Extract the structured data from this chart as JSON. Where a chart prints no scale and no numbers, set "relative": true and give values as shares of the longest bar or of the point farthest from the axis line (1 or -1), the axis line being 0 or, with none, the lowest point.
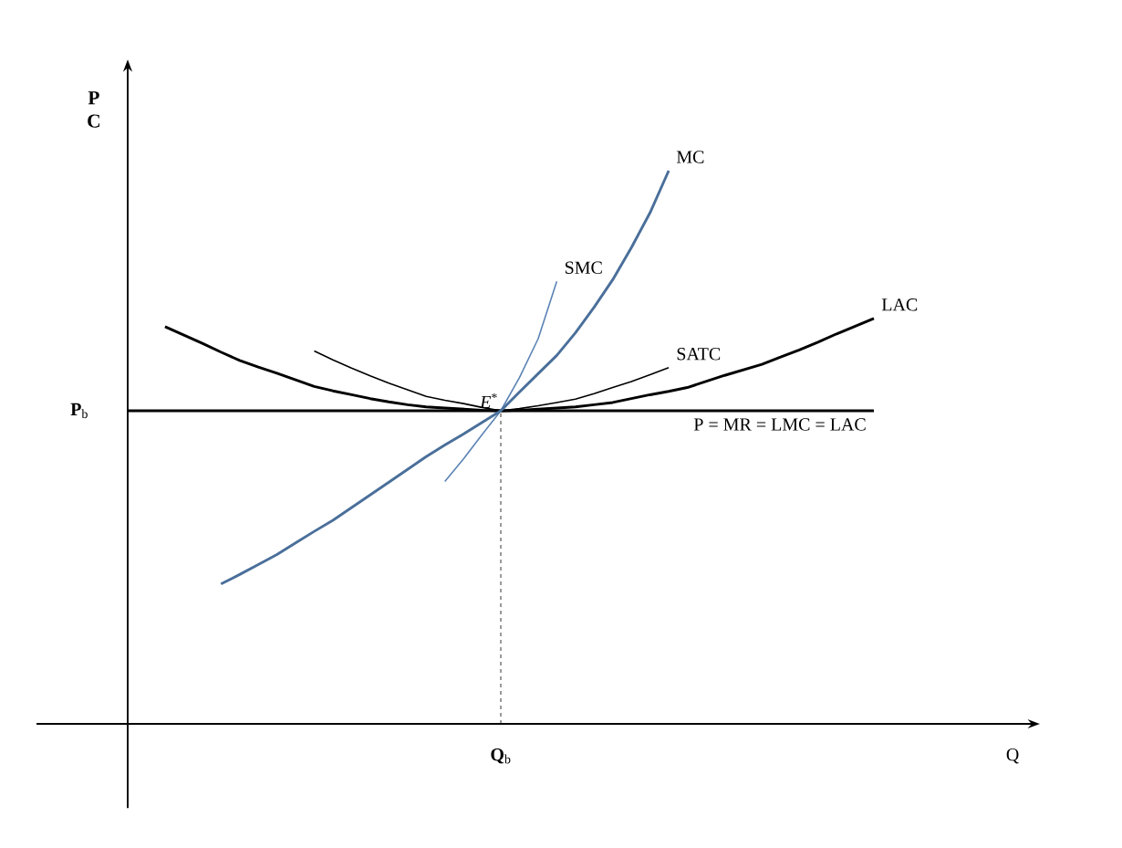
{
  "chart_data": {
    "type": "line",
    "relative": true,
    "ylabel": "P C",
    "marker": "none",
    "line_style": "solid",
    "categories": [
      null,
      null,
      null,
      null,
      null,
      null,
      null,
      null,
      null,
      null,
      null,
      null,
      null,
      null,
      null,
      null,
      null,
      null,
      null,
      null,
      null,
      null,
      null,
      null,
      null,
      null,
      null,
      null,
      null,
      null,
      null,
      null,
      null,
      null,
      null,
      null,
      null,
      null,
      null,
      null,
      null
    ],
    "annotations": [
      "*E*$^{*}$",
      "**P**$_{b}$",
      "**Q**$_{b}$",
      "Q"
    ],
    "series": [
      {
        "name": "P = MR = LMC = LAC",
        "color": "#000000",
        "values": [
          0.566,
          0.566,
          0.566,
          0.566,
          0.566,
          0.566,
          0.566,
          0.566,
          0.566,
          0.566,
          0.566,
          0.566,
          0.566,
          0.566,
          0.566,
          0.566,
          0.566,
          0.566,
          0.566,
          0.566,
          0.566,
          0.566,
          0.566,
          0.566,
          0.566,
          0.566,
          0.566,
          0.566,
          0.566,
          0.566,
          0.566,
          0.566,
          0.566,
          0.566,
          0.566,
          0.566,
          0.566,
          0.566,
          0.566,
          0.566,
          0.566
        ]
      },
      {
        "name": "LAC",
        "color": "#000000",
        "values": [
          null,
          null,
          0.718,
          0.703,
          0.688,
          0.672,
          0.657,
          0.645,
          0.634,
          0.622,
          0.61,
          0.602,
          0.595,
          0.588,
          0.582,
          0.577,
          0.573,
          0.571,
          0.569,
          0.567,
          0.566,
          0.567,
          0.569,
          0.571,
          0.573,
          0.577,
          0.581,
          0.588,
          0.595,
          0.601,
          0.608,
          0.619,
          0.63,
          0.64,
          0.65,
          0.663,
          0.676,
          0.69,
          0.705,
          0.719,
          0.733
        ]
      },
      {
        "name": "SATC",
        "color": "#000000",
        "values": [
          null,
          null,
          null,
          null,
          null,
          null,
          null,
          null,
          null,
          null,
          0.674,
          0.658,
          0.643,
          0.629,
          0.616,
          0.604,
          0.592,
          0.585,
          0.579,
          0.572,
          0.566,
          0.57,
          0.575,
          0.581,
          0.587,
          0.597,
          0.608,
          0.619,
          0.631,
          0.644,
          null,
          null,
          null,
          null,
          null,
          null,
          null,
          null,
          null,
          null,
          null
        ]
      },
      {
        "name": "SMC",
        "color": "#5b83b5",
        "values": [
          null,
          null,
          null,
          null,
          null,
          null,
          null,
          null,
          null,
          null,
          null,
          null,
          null,
          null,
          null,
          null,
          null,
          0.438,
          0.479,
          0.523,
          0.566,
          0.626,
          0.696,
          0.8,
          null,
          null,
          null,
          null,
          null,
          null,
          null,
          null,
          null,
          null,
          null,
          null,
          null,
          null,
          null,
          null,
          null
        ]
      },
      {
        "name": "MC",
        "color": "#4a6f9a",
        "values": [
          null,
          null,
          null,
          null,
          null,
          0.253,
          0.27,
          0.288,
          0.306,
          0.327,
          0.348,
          0.368,
          0.391,
          0.414,
          0.437,
          0.46,
          0.483,
          0.504,
          0.524,
          0.545,
          0.566,
          0.6,
          0.633,
          0.666,
          0.707,
          0.753,
          0.803,
          0.861,
          0.924,
          1.0,
          null,
          null,
          null,
          null,
          null,
          null,
          null,
          null,
          null,
          null,
          null
        ]
      }
    ]
  }
}
